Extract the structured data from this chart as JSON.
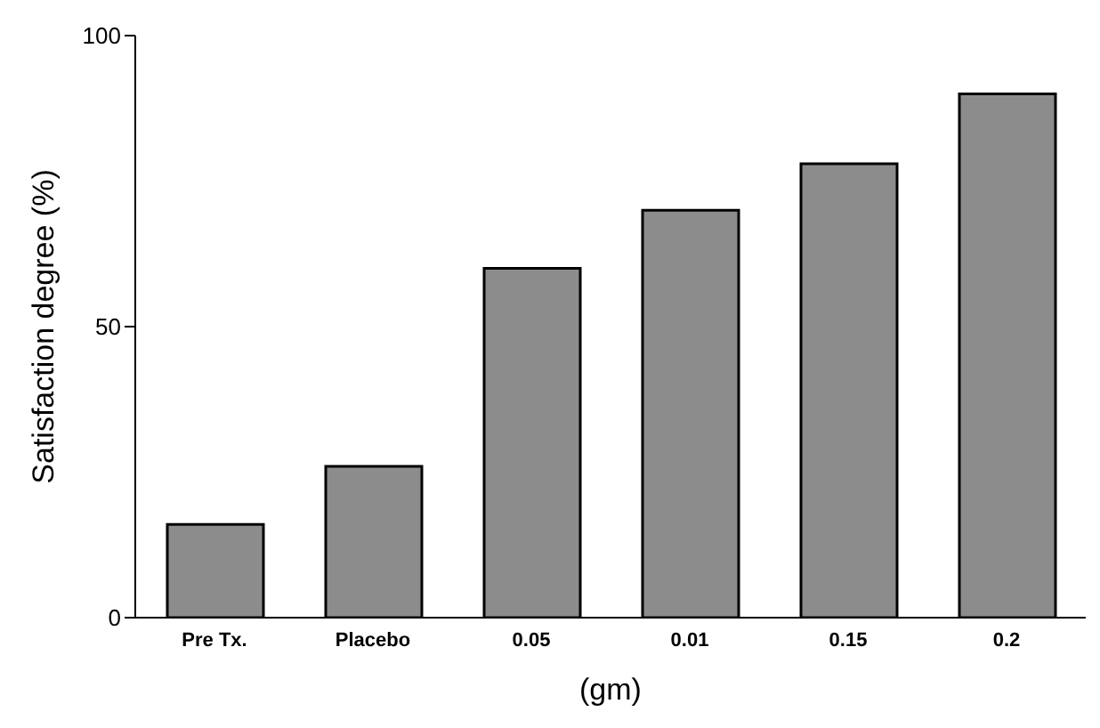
{
  "chart_data": {
    "type": "bar",
    "xlabel": "(gm)",
    "ylabel": "Satisfaction degree (%)",
    "categories": [
      "Pre Tx.",
      "Placebo",
      "0.05",
      "0.01",
      "0.15",
      "0.2"
    ],
    "values": [
      16,
      26,
      60,
      70,
      78,
      90
    ],
    "color": "#8c8c8c",
    "ylim": [
      0,
      100
    ],
    "yticks": [
      0,
      50,
      100
    ],
    "grid": false
  }
}
